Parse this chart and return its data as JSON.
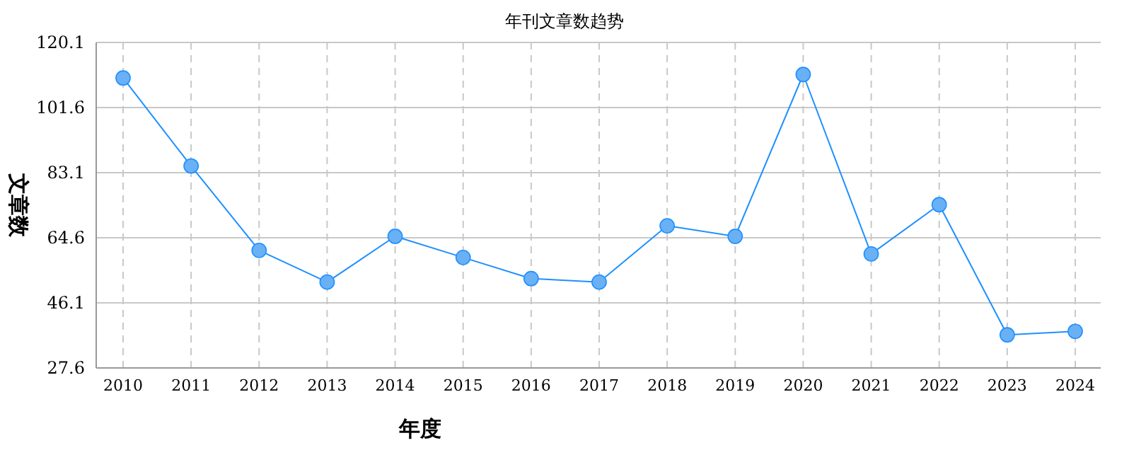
{
  "chart_data": {
    "type": "line",
    "title": "年刊文章数趋势",
    "xlabel": "年度",
    "ylabel": "文章数",
    "categories": [
      "2010",
      "2011",
      "2012",
      "2013",
      "2014",
      "2015",
      "2016",
      "2017",
      "2018",
      "2019",
      "2020",
      "2021",
      "2022",
      "2023",
      "2024"
    ],
    "series": [
      {
        "color": "#1e90ff",
        "values": [
          110,
          85,
          61,
          52,
          65,
          59,
          53,
          52,
          68,
          65,
          111,
          60,
          74,
          37,
          38
        ]
      }
    ],
    "ylim": [
      27.6,
      120.1
    ],
    "yticks": [
      27.6,
      46.1,
      64.6,
      83.1,
      101.6,
      120.1
    ],
    "grid": true,
    "marker": "circle",
    "line_style": "solid"
  }
}
